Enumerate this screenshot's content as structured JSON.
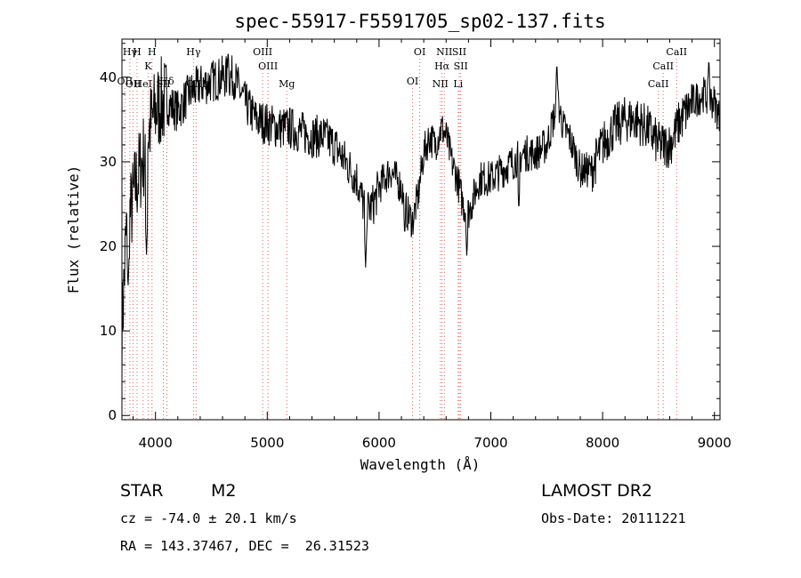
{
  "chart_data": {
    "type": "line",
    "title": "spec-55917-F5591705_sp02-137.fits",
    "xlabel": "Wavelength (Å)",
    "ylabel": "Flux (relative)",
    "xlim": [
      3700,
      9050
    ],
    "ylim": [
      -0.5,
      44.5
    ],
    "x_ticks": [
      4000,
      5000,
      6000,
      7000,
      8000,
      9000
    ],
    "y_ticks": [
      0,
      10,
      20,
      30,
      40
    ],
    "grid": false,
    "line_color": "#000000",
    "marker_color": "#e06060",
    "spectrum_envelope": {
      "wavelength": [
        3700,
        3740,
        3780,
        3820,
        3860,
        3900,
        3950,
        4000,
        4050,
        4100,
        4150,
        4200,
        4300,
        4400,
        4500,
        4600,
        4700,
        4800,
        4900,
        5000,
        5100,
        5200,
        5300,
        5400,
        5500,
        5600,
        5700,
        5800,
        5880,
        5950,
        6000,
        6100,
        6200,
        6250,
        6300,
        6350,
        6400,
        6450,
        6500,
        6560,
        6600,
        6650,
        6700,
        6750,
        6800,
        6850,
        6900,
        7000,
        7100,
        7200,
        7300,
        7400,
        7500,
        7600,
        7650,
        7700,
        7800,
        7900,
        8000,
        8100,
        8200,
        8300,
        8400,
        8500,
        8600,
        8700,
        8800,
        8900,
        9000,
        9050
      ],
      "flux": [
        10,
        22,
        24,
        27,
        29,
        31,
        34,
        36,
        37,
        37,
        36.5,
        36,
        38,
        39,
        39.5,
        40,
        40,
        37,
        35,
        34.5,
        34,
        34,
        33.5,
        33,
        33,
        32,
        30,
        28,
        24,
        25,
        27,
        29,
        27,
        24,
        23,
        26,
        31,
        33,
        32,
        34,
        33,
        30,
        28,
        25,
        24,
        26,
        28,
        28,
        29,
        30,
        31,
        31,
        32,
        37,
        34,
        33,
        29,
        29,
        32,
        34,
        35,
        35,
        34,
        32,
        32,
        35,
        37,
        38,
        37,
        35
      ]
    },
    "dips": [
      {
        "wavelength": 3755,
        "flux": 15
      },
      {
        "wavelength": 3920,
        "flux": 19
      },
      {
        "wavelength": 5880,
        "flux": 17.5
      },
      {
        "wavelength": 6230,
        "flux": 21
      },
      {
        "wavelength": 6785,
        "flux": 18.5
      },
      {
        "wavelength": 7250,
        "flux": 24
      }
    ],
    "peaks": [
      {
        "wavelength": 4650,
        "flux": 43.5
      },
      {
        "wavelength": 7590,
        "flux": 42
      },
      {
        "wavelength": 8950,
        "flux": 42.5
      }
    ],
    "lines": [
      {
        "label": "OII",
        "wavelength": 3727,
        "row": 2
      },
      {
        "label": "Hγ",
        "wavelength": 3771,
        "row": 0
      },
      {
        "label": "OII",
        "wavelength": 3800,
        "row": 3
      },
      {
        "label": "H",
        "wavelength": 3835,
        "row": 0
      },
      {
        "label": "HeI",
        "wavelength": 3889,
        "row": 3
      },
      {
        "label": "K",
        "wavelength": 3934,
        "row": 1
      },
      {
        "label": "H",
        "wavelength": 3969,
        "row": 0
      },
      {
        "label": "Hδ",
        "wavelength": 4102,
        "row": 2
      },
      {
        "label": "SII",
        "wavelength": 4070,
        "row": 3
      },
      {
        "label": "Hγ",
        "wavelength": 4340,
        "row": 0
      },
      {
        "label": "OIII",
        "wavelength": 4363,
        "row": 3
      },
      {
        "label": "OIII",
        "wavelength": 4959,
        "row": 0
      },
      {
        "label": "OIII",
        "wavelength": 5007,
        "row": 1
      },
      {
        "label": "Mg",
        "wavelength": 5175,
        "row": 3
      },
      {
        "label": "OI",
        "wavelength": 6300,
        "row": 2
      },
      {
        "label": "OI",
        "wavelength": 6364,
        "row": 0
      },
      {
        "label": "NII",
        "wavelength": 6548,
        "row": 3
      },
      {
        "label": "Hα",
        "wavelength": 6563,
        "row": 1
      },
      {
        "label": "NII",
        "wavelength": 6584,
        "row": 0
      },
      {
        "label": "SII",
        "wavelength": 6717,
        "row": 0
      },
      {
        "label": "SII",
        "wavelength": 6731,
        "row": 1
      },
      {
        "label": "Li",
        "wavelength": 6708,
        "row": 3
      },
      {
        "label": "CaII",
        "wavelength": 8498,
        "row": 3
      },
      {
        "label": "CaII",
        "wavelength": 8542,
        "row": 1
      },
      {
        "label": "CaII",
        "wavelength": 8662,
        "row": 0
      }
    ]
  },
  "info": {
    "object_class": "STAR",
    "subclass": "M2",
    "survey": "LAMOST DR2",
    "cz": "cz = -74.0 ± 20.1 km/s",
    "obs_date": "Obs-Date: 20111221",
    "coords": "RA = 143.37467, DEC =  26.31523"
  }
}
